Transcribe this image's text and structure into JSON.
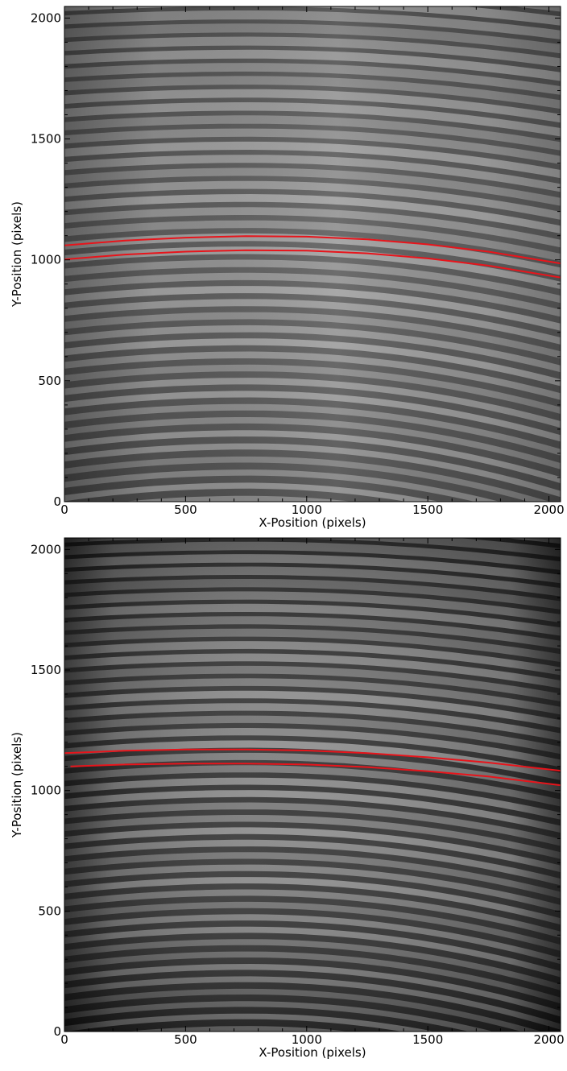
{
  "figure": {
    "panels": [
      {
        "id": "top",
        "xlabel": "X-Position (pixels)",
        "ylabel": "Y-Position (pixels)",
        "xlim": [
          0,
          2048
        ],
        "ylim": [
          0,
          2048
        ],
        "xticks": [
          "0",
          "500",
          "1000",
          "1500",
          "2000"
        ],
        "yticks": [
          "0",
          "500",
          "1000",
          "1500",
          "2000"
        ],
        "image": {
          "colormap": "grayscale",
          "stripe_count": 38,
          "dark_color": "#555555",
          "light_color": "#a8a8a8"
        },
        "trace_color": "#e8141b",
        "traces": [
          {
            "name": "",
            "x": [
              0,
              250,
              500,
              750,
              1000,
              1250,
              1500,
              1750,
              2048
            ],
            "y": [
              1060,
              1080,
              1092,
              1098,
              1096,
              1085,
              1064,
              1034,
              985
            ]
          },
          {
            "name": "",
            "x": [
              0,
              250,
              500,
              750,
              1000,
              1250,
              1500,
              1750,
              2048
            ],
            "y": [
              1002,
              1022,
              1034,
              1040,
              1038,
              1027,
              1006,
              976,
              927
            ]
          }
        ]
      },
      {
        "id": "bottom",
        "xlabel": "X-Position (pixels)",
        "ylabel": "Y-Position (pixels)",
        "xlim": [
          0,
          2048
        ],
        "ylim": [
          0,
          2048
        ],
        "xticks": [
          "0",
          "500",
          "1000",
          "1500",
          "2000"
        ],
        "yticks": [
          "0",
          "500",
          "1000",
          "1500",
          "2000"
        ],
        "image": {
          "colormap": "grayscale",
          "stripe_count": 40,
          "dark_color": "#2a2a2a",
          "light_color": "#9a9a9a"
        },
        "trace_color": "#e8141b",
        "traces": [
          {
            "name": "",
            "x": [
              0,
              250,
              500,
              750,
              1000,
              1250,
              1500,
              1750,
              2048
            ],
            "y": [
              1155,
              1165,
              1170,
              1170,
              1166,
              1155,
              1138,
              1116,
              1082
            ]
          },
          {
            "name": "",
            "x": [
              25,
              250,
              500,
              750,
              1000,
              1250,
              1500,
              1750,
              2048
            ],
            "y": [
              1100,
              1108,
              1112,
              1112,
              1108,
              1097,
              1080,
              1058,
              1022
            ]
          }
        ]
      }
    ]
  }
}
